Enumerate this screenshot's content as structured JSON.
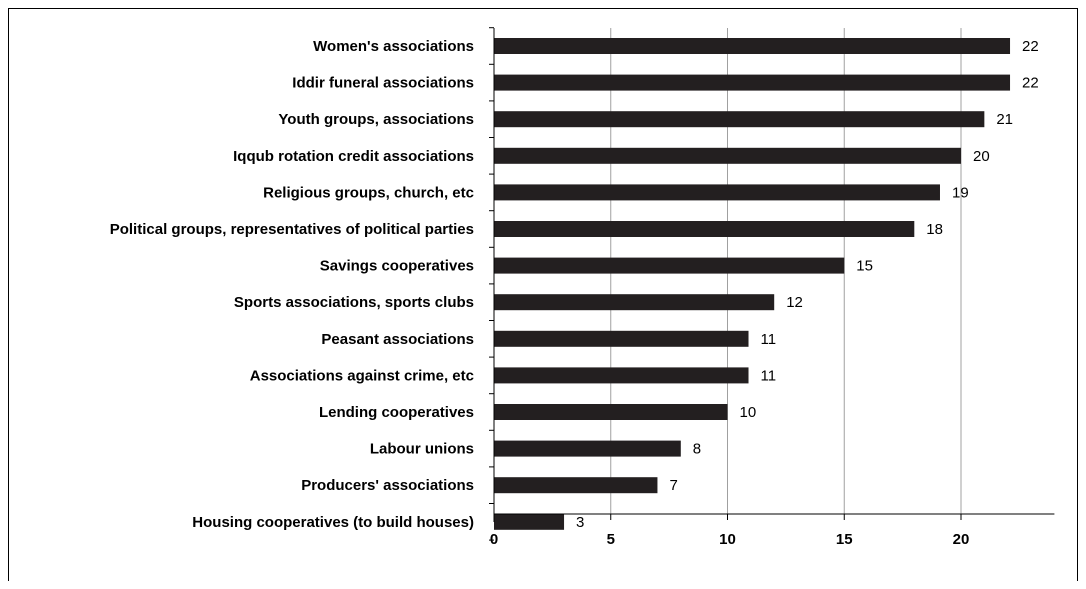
{
  "chart_data": {
    "type": "bar",
    "orientation": "horizontal",
    "categories": [
      "Women's associations",
      "Iddir funeral associations",
      "Youth groups, associations",
      "Iqqub rotation credit associations",
      "Religious groups, church, etc",
      "Political groups, representatives of political parties",
      "Savings cooperatives",
      "Sports associations, sports clubs",
      "Peasant associations",
      "Associations against crime, etc",
      "Lending cooperatives",
      "Labour unions",
      "Producers' associations",
      "Housing cooperatives (to build houses)"
    ],
    "values": [
      22.1,
      22.1,
      21.0,
      20.0,
      19.1,
      18.0,
      15.0,
      12.0,
      10.9,
      10.9,
      10.0,
      8.0,
      7.0,
      3.0
    ],
    "data_labels": [
      "22",
      "22",
      "21",
      "20",
      "19",
      "18",
      "15",
      "12",
      "11",
      "11",
      "10",
      "8",
      "7",
      "3"
    ],
    "x_ticks": [
      "0",
      "5",
      "10",
      "15",
      "20"
    ],
    "xlim": [
      0,
      24
    ],
    "title": "",
    "xlabel": "",
    "ylabel": "",
    "grid": "vertical",
    "legend": "none",
    "colors": {
      "bar": "#231f20",
      "grid": "#a0a0a0",
      "axis": "#000000"
    }
  }
}
